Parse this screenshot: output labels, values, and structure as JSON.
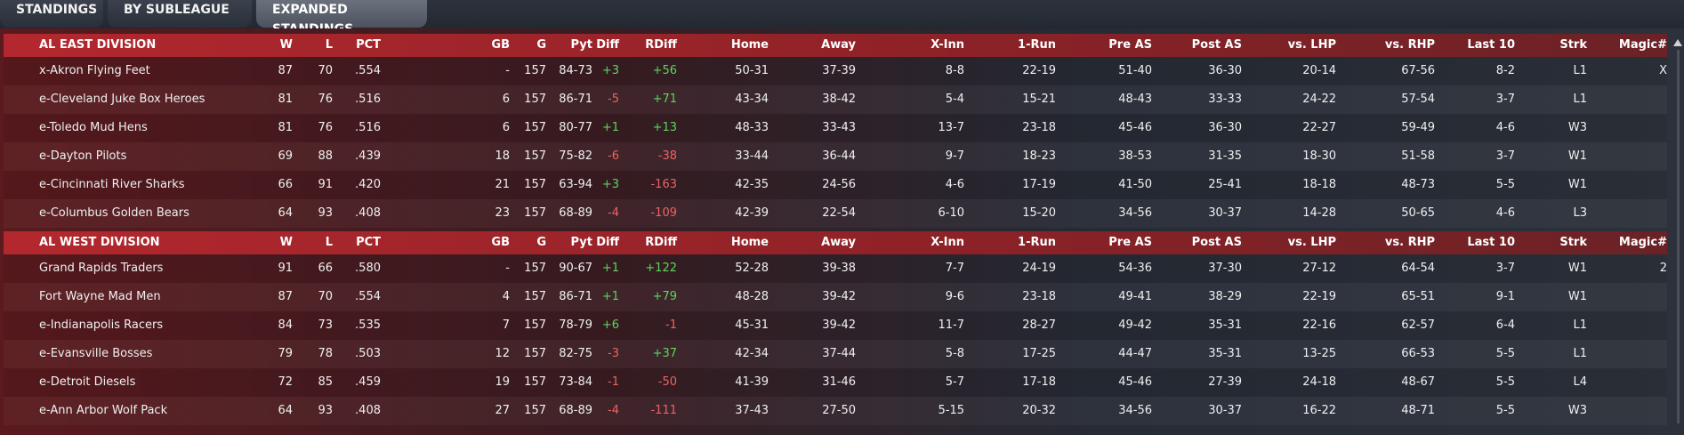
{
  "tabs": [
    {
      "label": "STANDINGS",
      "active": false
    },
    {
      "label": "BY SUBLEAGUE",
      "active": false
    },
    {
      "label": "EXPANDED STANDINGS",
      "active": true
    }
  ],
  "columns": [
    "W",
    "L",
    "PCT",
    "GB",
    "G",
    "Pyt",
    "Diff",
    "RDiff",
    "Home",
    "Away",
    "X-Inn",
    "1-Run",
    "Pre AS",
    "Post AS",
    "vs. LHP",
    "vs. RHP",
    "Last 10",
    "Strk",
    "Magic#"
  ],
  "divisions": [
    {
      "name": "AL EAST DIVISION",
      "teams": [
        [
          "x-Akron  Flying Feet",
          "87",
          "70",
          ".554",
          "-",
          "157",
          "84-73",
          "+3",
          "+56",
          "50-31",
          "37-39",
          "8-8",
          "22-19",
          "51-40",
          "36-30",
          "20-14",
          "67-56",
          "8-2",
          "L1",
          "X"
        ],
        [
          "e-Cleveland Juke Box Heroes",
          "81",
          "76",
          ".516",
          "6",
          "157",
          "86-71",
          "-5",
          "+71",
          "43-34",
          "38-42",
          "5-4",
          "15-21",
          "48-43",
          "33-33",
          "24-22",
          "57-54",
          "3-7",
          "L1",
          ""
        ],
        [
          "e-Toledo  Mud Hens",
          "81",
          "76",
          ".516",
          "6",
          "157",
          "80-77",
          "+1",
          "+13",
          "48-33",
          "33-43",
          "13-7",
          "23-18",
          "45-46",
          "36-30",
          "22-27",
          "59-49",
          "4-6",
          "W3",
          ""
        ],
        [
          "e-Dayton Pilots",
          "69",
          "88",
          ".439",
          "18",
          "157",
          "75-82",
          "-6",
          "-38",
          "33-44",
          "36-44",
          "9-7",
          "18-23",
          "38-53",
          "31-35",
          "18-30",
          "51-58",
          "3-7",
          "W1",
          ""
        ],
        [
          "e-Cincinnati River Sharks",
          "66",
          "91",
          ".420",
          "21",
          "157",
          "63-94",
          "+3",
          "-163",
          "42-35",
          "24-56",
          "4-6",
          "17-19",
          "41-50",
          "25-41",
          "18-18",
          "48-73",
          "5-5",
          "W1",
          ""
        ],
        [
          "e-Columbus Golden Bears",
          "64",
          "93",
          ".408",
          "23",
          "157",
          "68-89",
          "-4",
          "-109",
          "42-39",
          "22-54",
          "6-10",
          "15-20",
          "34-56",
          "30-37",
          "14-28",
          "50-65",
          "4-6",
          "L3",
          ""
        ]
      ]
    },
    {
      "name": "AL WEST DIVISION",
      "teams": [
        [
          "Grand Rapids Traders",
          "91",
          "66",
          ".580",
          "-",
          "157",
          "90-67",
          "+1",
          "+122",
          "52-28",
          "39-38",
          "7-7",
          "24-19",
          "54-36",
          "37-30",
          "27-12",
          "64-54",
          "3-7",
          "W1",
          "2"
        ],
        [
          "Fort Wayne Mad Men",
          "87",
          "70",
          ".554",
          "4",
          "157",
          "86-71",
          "+1",
          "+79",
          "48-28",
          "39-42",
          "9-6",
          "23-18",
          "49-41",
          "38-29",
          "22-19",
          "65-51",
          "9-1",
          "W1",
          ""
        ],
        [
          "e-Indianapolis Racers",
          "84",
          "73",
          ".535",
          "7",
          "157",
          "78-79",
          "+6",
          "-1",
          "45-31",
          "39-42",
          "11-7",
          "28-27",
          "49-42",
          "35-31",
          "22-16",
          "62-57",
          "6-4",
          "L1",
          ""
        ],
        [
          "e-Evansville Bosses",
          "79",
          "78",
          ".503",
          "12",
          "157",
          "82-75",
          "-3",
          "+37",
          "42-34",
          "37-44",
          "5-8",
          "17-25",
          "44-47",
          "35-31",
          "13-25",
          "66-53",
          "5-5",
          "L1",
          ""
        ],
        [
          "e-Detroit Diesels",
          "72",
          "85",
          ".459",
          "19",
          "157",
          "73-84",
          "-1",
          "-50",
          "41-39",
          "31-46",
          "5-7",
          "17-18",
          "45-46",
          "27-39",
          "24-18",
          "48-67",
          "5-5",
          "L4",
          ""
        ],
        [
          "e-Ann Arbor Wolf Pack",
          "64",
          "93",
          ".408",
          "27",
          "157",
          "68-89",
          "-4",
          "-111",
          "37-43",
          "27-50",
          "5-15",
          "20-32",
          "34-56",
          "30-37",
          "16-22",
          "48-71",
          "5-5",
          "W3",
          ""
        ]
      ]
    }
  ]
}
